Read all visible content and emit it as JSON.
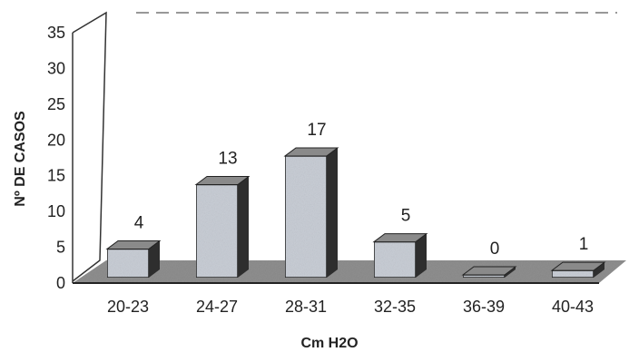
{
  "chart_data": {
    "type": "bar",
    "categories": [
      "20-23",
      "24-27",
      "28-31",
      "32-35",
      "36-39",
      "40-43"
    ],
    "values": [
      4,
      13,
      17,
      5,
      0,
      1
    ],
    "xlabel": "Cm H2O",
    "ylabel": "Nº DE CASOS",
    "ylim": [
      0,
      35
    ],
    "yticks": [
      0,
      5,
      10,
      15,
      20,
      25,
      30,
      35
    ],
    "data_labels": [
      "4",
      "13",
      "17",
      "5",
      "0",
      "1"
    ],
    "grid": false,
    "style": "3d-column",
    "colors": {
      "bar_front": "#c9ced6",
      "bar_side": "#2e2e2e",
      "bar_top": "#8a8a8a",
      "floor": "#8f8f8f",
      "wall": "#ffffff"
    }
  }
}
